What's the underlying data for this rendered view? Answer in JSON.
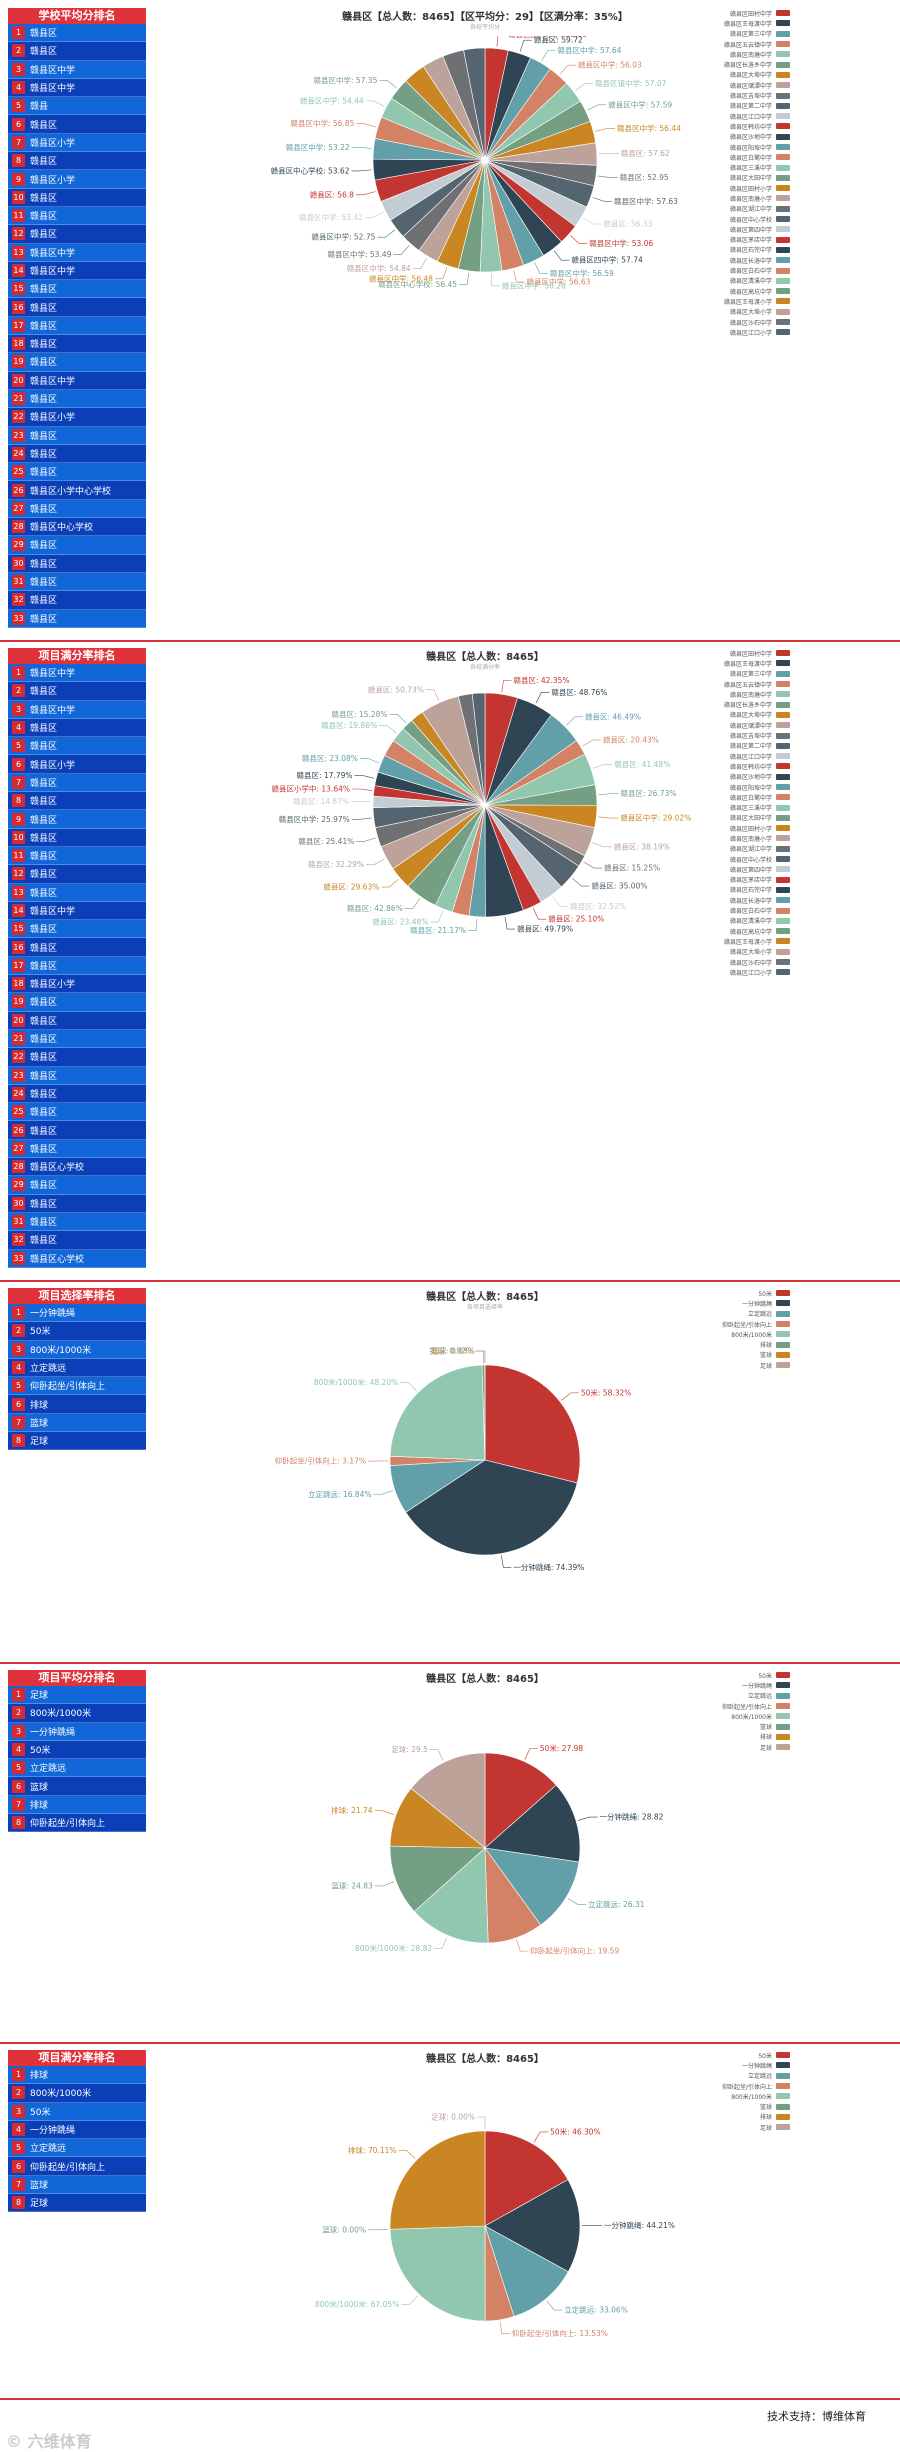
{
  "colors": [
    "#c23531",
    "#2f4554",
    "#61a0a8",
    "#d48265",
    "#91c7ae",
    "#749f83",
    "#ca8622",
    "#bda29a",
    "#6e7074",
    "#546570",
    "#c4ccd3"
  ],
  "sections": [
    {
      "id": "avg",
      "panel_title": "学校平均分排名",
      "rows": [
        "赣县区",
        "赣县区",
        "赣县区中学",
        "赣县区中学",
        "赣县",
        "赣县区",
        "赣县区小学",
        "赣县区",
        "赣县区小学",
        "赣县区",
        "赣县区",
        "赣县区",
        "赣县区中学",
        "赣县区中学",
        "赣县区",
        "赣县区",
        "赣县区",
        "赣县区",
        "赣县区",
        "赣县区中学",
        "赣县区",
        "赣县区小学",
        "赣县区",
        "赣县区",
        "赣县区",
        "赣县区小学中心学校",
        "赣县区",
        "赣县区中心学校",
        "赣县区",
        "赣县区",
        "赣县区",
        "赣县区",
        "赣县区"
      ],
      "title": "赣县区【总人数：8465】【区平均分：29】【区满分率：35%】",
      "subtitle": "各校平均分",
      "chart_data": {
        "type": "pie",
        "categories": [
          "赣县区田村中学",
          "赣县区王母渡中学",
          "赣县区第三中学",
          "赣县区五云镇中学",
          "赣县区南塘中学",
          "赣县区长洛乡中学",
          "赣县区大埠中学",
          "赣县区储潭中学",
          "赣县区吉埠中学",
          "赣县区第二中学",
          "赣县区江口中学",
          "赣县区韩坊中学",
          "赣县区沙地中学",
          "赣县区阳埠中学",
          "赣县区白鹭中学",
          "赣县区三溪中学",
          "赣县区大田中学",
          "赣县区田村小学",
          "赣县区南塘小学",
          "赣县区湖江中学",
          "赣县区中心学校",
          "赣县区第四中学",
          "赣县区茅店中学",
          "赣县区石芫中学",
          "赣县区长洛中学",
          "赣县区白石中学",
          "赣县区清溪中学",
          "赣县区高坑中学",
          "赣县区王母渡小学",
          "赣县区大埠小学",
          "赣县区沙石中学",
          "赣县区江口小学"
        ],
        "values": [
          59.68,
          59.72,
          57.64,
          56.03,
          57.07,
          57.59,
          56.44,
          57.62,
          52.95,
          57.63,
          56.33,
          53.06,
          57.74,
          56.59,
          56.63,
          56.28,
          56.45,
          56.48,
          54.84,
          53.49,
          52.75,
          53.42,
          56.8,
          53.62,
          53.22,
          56.85,
          54.44,
          57.35,
          58.1,
          56.2,
          55.1,
          54.9
        ],
        "labels": [
          {
            "i": 0,
            "text": "赣县区田村中学: 59.68"
          },
          {
            "i": 1,
            "text": "赣县区: 59.72"
          },
          {
            "i": 2,
            "text": "赣县区中学: 57.64"
          },
          {
            "i": 3,
            "text": "赣县区中学: 56.03"
          },
          {
            "i": 4,
            "text": "赣县区镇中学: 57.07"
          },
          {
            "i": 5,
            "text": "赣县区中学: 57.59"
          },
          {
            "i": 6,
            "text": "赣县区中学: 56.44"
          },
          {
            "i": 7,
            "text": "赣县区: 57.62"
          },
          {
            "i": 8,
            "text": "赣县区: 52.95"
          },
          {
            "i": 9,
            "text": "赣县区中学: 57.63"
          },
          {
            "i": 10,
            "text": "赣县区: 56.33"
          },
          {
            "i": 11,
            "text": "赣县区中学: 53.06"
          },
          {
            "i": 12,
            "text": "赣县区四中学: 57.74"
          },
          {
            "i": 13,
            "text": "赣县区中学: 56.59"
          },
          {
            "i": 14,
            "text": "赣县区中学: 56.63"
          },
          {
            "i": 15,
            "text": "赣县区中学: 56.28"
          },
          {
            "i": 16,
            "text": "赣县区中心学校: 56.45"
          },
          {
            "i": 17,
            "text": "赣县区中学: 56.48"
          },
          {
            "i": 18,
            "text": "赣县区中学: 54.84"
          },
          {
            "i": 19,
            "text": "赣县区中学: 53.49"
          },
          {
            "i": 20,
            "text": "赣县区中学: 52.75"
          },
          {
            "i": 21,
            "text": "赣县区中学: 53.42"
          },
          {
            "i": 22,
            "text": "赣县区: 56.8"
          },
          {
            "i": 23,
            "text": "赣县区中心学校: 53.62"
          },
          {
            "i": 24,
            "text": "赣县区中学: 53.22"
          },
          {
            "i": 25,
            "text": "赣县区中学: 56.85"
          },
          {
            "i": 26,
            "text": "赣县区中学: 54.44"
          },
          {
            "i": 27,
            "text": "赣县区中学: 57.35"
          }
        ]
      },
      "legend": [
        "赣县区田村中学",
        "赣县区王母渡中学",
        "赣县区第三中学",
        "赣县区五云镇中学",
        "赣县区南塘中学",
        "赣县区长洛乡中学",
        "赣县区大埠中学",
        "赣县区储潭中学",
        "赣县区吉埠中学",
        "赣县区第二中学",
        "赣县区江口中学",
        "赣县区韩坊中学",
        "赣县区沙地中学",
        "赣县区阳埠中学",
        "赣县区白鹭中学",
        "赣县区三溪中学",
        "赣县区大田中学",
        "赣县区田村小学",
        "赣县区南塘小学",
        "赣县区湖江中学",
        "赣县区中心学校",
        "赣县区第四中学",
        "赣县区茅店中学",
        "赣县区石芫中学",
        "赣县区长洛中学",
        "赣县区白石中学",
        "赣县区清溪中学",
        "赣县区高坑中学",
        "赣县区王母渡小学",
        "赣县区大埠小学",
        "赣县区沙石中学",
        "赣县区江口小学"
      ]
    },
    {
      "id": "full",
      "panel_title": "项目满分率排名",
      "rows": [
        "赣县区中学",
        "赣县区",
        "赣县区中学",
        "赣县区",
        "赣县区",
        "赣县区小学",
        "赣县区",
        "赣县区",
        "赣县区",
        "赣县区",
        "赣县区",
        "赣县区",
        "赣县区",
        "赣县区中学",
        "赣县区",
        "赣县区",
        "赣县区",
        "赣县区小学",
        "赣县区",
        "赣县区",
        "赣县区",
        "赣县区",
        "赣县区",
        "赣县区",
        "赣县区",
        "赣县区",
        "赣县区",
        "赣县区心学校",
        "赣县区",
        "赣县区",
        "赣县区",
        "赣县区",
        "赣县区心学校"
      ],
      "title": "赣县区【总人数：8465】",
      "subtitle": "各校满分率",
      "chart_data": {
        "type": "pie",
        "categories": [
          "赣县区田村中学",
          "赣县区王母渡中学",
          "赣县区第三中学",
          "赣县区五云镇中学",
          "赣县区南塘中学",
          "赣县区长洛乡中学",
          "赣县区大埠中学",
          "赣县区储潭中学",
          "赣县区吉埠中学",
          "赣县区第二中学",
          "赣县区江口中学",
          "赣县区韩坊中学",
          "赣县区沙地中学",
          "赣县区阳埠中学",
          "赣县区白鹭中学",
          "赣县区三溪中学",
          "赣县区大田中学",
          "赣县区田村小学",
          "赣县区南塘小学",
          "赣县区湖江中学",
          "赣县区中心学校",
          "赣县区第四中学",
          "赣县区茅店中学",
          "赣县区石芫中学",
          "赣县区长洛中学",
          "赣县区白石中学",
          "赣县区清溪中学",
          "赣县区高坑中学",
          "赣县区王母渡小学",
          "赣县区大埠小学",
          "赣县区沙石中学",
          "赣县区江口小学"
        ],
        "values": [
          42.35,
          48.76,
          46.49,
          20.43,
          41.48,
          26.73,
          29.02,
          38.19,
          15.25,
          35.0,
          32.52,
          25.1,
          49.79,
          21.17,
          22.0,
          23.48,
          42.86,
          29.63,
          32.29,
          25.41,
          25.97,
          14.87,
          13.64,
          17.79,
          23.08,
          22.0,
          19.86,
          15.28,
          17.32,
          50.73,
          18.1,
          16.5
        ],
        "labels": [
          {
            "i": 0,
            "text": "赣县区: 42.35%"
          },
          {
            "i": 1,
            "text": "赣县区: 48.76%"
          },
          {
            "i": 2,
            "text": "赣县区: 46.49%"
          },
          {
            "i": 3,
            "text": "赣县区: 20.43%"
          },
          {
            "i": 4,
            "text": "赣县区: 41.48%"
          },
          {
            "i": 5,
            "text": "赣县区: 26.73%"
          },
          {
            "i": 6,
            "text": "赣县区中学: 29.02%"
          },
          {
            "i": 7,
            "text": "赣县区: 38.19%"
          },
          {
            "i": 8,
            "text": "赣县区: 15.25%"
          },
          {
            "i": 9,
            "text": "赣县区: 35.00%"
          },
          {
            "i": 10,
            "text": "赣县区: 32.52%"
          },
          {
            "i": 11,
            "text": "赣县区: 25.10%"
          },
          {
            "i": 12,
            "text": "赣县区: 49.79%"
          },
          {
            "i": 13,
            "text": "赣县区: 21.17%"
          },
          {
            "i": 15,
            "text": "赣县区: 23.48%"
          },
          {
            "i": 16,
            "text": "赣县区: 42.86%"
          },
          {
            "i": 17,
            "text": "赣县区: 29.63%"
          },
          {
            "i": 18,
            "text": "赣县区: 32.29%"
          },
          {
            "i": 19,
            "text": "赣县区: 25.41%"
          },
          {
            "i": 20,
            "text": "赣县区中学: 25.97%"
          },
          {
            "i": 21,
            "text": "赣县区: 14.87%"
          },
          {
            "i": 22,
            "text": "赣县区小学中: 13.64%"
          },
          {
            "i": 23,
            "text": "赣县区: 17.79%"
          },
          {
            "i": 24,
            "text": "赣县区: 23.08%"
          },
          {
            "i": 26,
            "text": "赣县区: 19.86%"
          },
          {
            "i": 27,
            "text": "赣县区: 15.28%"
          },
          {
            "i": 29,
            "text": "赣县区: 50.73%"
          }
        ]
      },
      "legend": [
        "赣县区田村中学",
        "赣县区王母渡中学",
        "赣县区第三中学",
        "赣县区五云镇中学",
        "赣县区南塘中学",
        "赣县区长洛乡中学",
        "赣县区大埠中学",
        "赣县区储潭中学",
        "赣县区吉埠中学",
        "赣县区第二中学",
        "赣县区江口中学",
        "赣县区韩坊中学",
        "赣县区沙地中学",
        "赣县区阳埠中学",
        "赣县区白鹭中学",
        "赣县区三溪中学",
        "赣县区大田中学",
        "赣县区田村小学",
        "赣县区南塘小学",
        "赣县区湖江中学",
        "赣县区中心学校",
        "赣县区第四中学",
        "赣县区茅店中学",
        "赣县区石芫中学",
        "赣县区长洛中学",
        "赣县区白石中学",
        "赣县区清溪中学",
        "赣县区高坑中学",
        "赣县区王母渡小学",
        "赣县区大埠小学",
        "赣县区沙石中学",
        "赣县区江口小学"
      ]
    },
    {
      "id": "select",
      "panel_title": "项目选择率排名",
      "rows": [
        "一分钟跳绳",
        "50米",
        "800米/1000米",
        "立定跳远",
        "仰卧起坐/引体向上",
        "排球",
        "篮球",
        "足球"
      ],
      "title": "赣县区【总人数：8465】",
      "subtitle": "各项目选择率",
      "chart_data": {
        "type": "pie",
        "categories": [
          "50米",
          "一分钟跳绳",
          "立定跳远",
          "仰卧起坐/引体向上",
          "800米/1000米",
          "排球",
          "篮球",
          "足球"
        ],
        "values": [
          58.32,
          74.39,
          16.84,
          3.17,
          48.2,
          0.92,
          0.03,
          0.05
        ],
        "labels": [
          {
            "i": 0,
            "text": "50米: 58.32%"
          },
          {
            "i": 1,
            "text": "一分钟跳绳: 74.39%"
          },
          {
            "i": 2,
            "text": "立定跳远: 16.84%"
          },
          {
            "i": 3,
            "text": "仰卧起坐/引体向上: 3.17%"
          },
          {
            "i": 4,
            "text": "800米/1000米: 48.20%"
          },
          {
            "i": 5,
            "text": "排球: 0.92%"
          },
          {
            "i": 6,
            "text": "篮球: 0.03%"
          },
          {
            "i": 7,
            "text": "足球: 0.05%"
          }
        ]
      },
      "legend": [
        "50米",
        "一分钟跳绳",
        "立定跳远",
        "仰卧起坐/引体向上",
        "800米/1000米",
        "排球",
        "篮球",
        "足球"
      ]
    },
    {
      "id": "projavg",
      "panel_title": "项目平均分排名",
      "rows": [
        "足球",
        "800米/1000米",
        "一分钟跳绳",
        "50米",
        "立定跳远",
        "篮球",
        "排球",
        "仰卧起坐/引体向上"
      ],
      "title": "赣县区【总人数：8465】",
      "subtitle": "",
      "chart_data": {
        "type": "pie",
        "categories": [
          "50米",
          "一分钟跳绳",
          "立定跳远",
          "仰卧起坐/引体向上",
          "800米/1000米",
          "篮球",
          "排球",
          "足球"
        ],
        "values": [
          27.98,
          28.82,
          26.31,
          19.59,
          28.82,
          24.83,
          21.74,
          29.5
        ],
        "labels": [
          {
            "i": 0,
            "text": "50米: 27.98"
          },
          {
            "i": 1,
            "text": "一分钟跳绳: 28.82"
          },
          {
            "i": 2,
            "text": "立定跳远: 26.31"
          },
          {
            "i": 3,
            "text": "仰卧起坐/引体向上: 19.59"
          },
          {
            "i": 4,
            "text": "800米/1000米: 28.82"
          },
          {
            "i": 5,
            "text": "篮球: 24.83"
          },
          {
            "i": 6,
            "text": "排球: 21.74"
          },
          {
            "i": 7,
            "text": "足球: 29.5"
          }
        ]
      },
      "legend": [
        "50米",
        "一分钟跳绳",
        "立定跳远",
        "仰卧起坐/引体向上",
        "800米/1000米",
        "篮球",
        "排球",
        "足球"
      ]
    },
    {
      "id": "projfull",
      "panel_title": "项目满分率排名",
      "rows": [
        "排球",
        "800米/1000米",
        "50米",
        "一分钟跳绳",
        "立定跳远",
        "仰卧起坐/引体向上",
        "篮球",
        "足球"
      ],
      "title": "赣县区【总人数：8465】",
      "subtitle": "",
      "chart_data": {
        "type": "pie",
        "categories": [
          "50米",
          "一分钟跳绳",
          "立定跳远",
          "仰卧起坐/引体向上",
          "800米/1000米",
          "篮球",
          "排球",
          "足球"
        ],
        "values": [
          46.3,
          44.21,
          33.06,
          13.53,
          67.05,
          0.0,
          70.11,
          0.0
        ],
        "labels": [
          {
            "i": 0,
            "text": "50米: 46.30%"
          },
          {
            "i": 1,
            "text": "一分钟跳绳: 44.21%"
          },
          {
            "i": 2,
            "text": "立定跳远: 33.06%"
          },
          {
            "i": 3,
            "text": "仰卧起坐/引体向上: 13.53%"
          },
          {
            "i": 4,
            "text": "800米/1000米: 67.05%"
          },
          {
            "i": 5,
            "text": "篮球: 0.00%"
          },
          {
            "i": 6,
            "text": "排球: 70.11%"
          },
          {
            "i": 7,
            "text": "足球: 0.00%"
          }
        ]
      },
      "legend": [
        "50米",
        "一分钟跳绳",
        "立定跳远",
        "仰卧起坐/引体向上",
        "800米/1000米",
        "篮球",
        "排球",
        "足球"
      ]
    }
  ],
  "footer": {
    "support": "技术支持：博维体育",
    "watermark": "© 六维体育"
  }
}
